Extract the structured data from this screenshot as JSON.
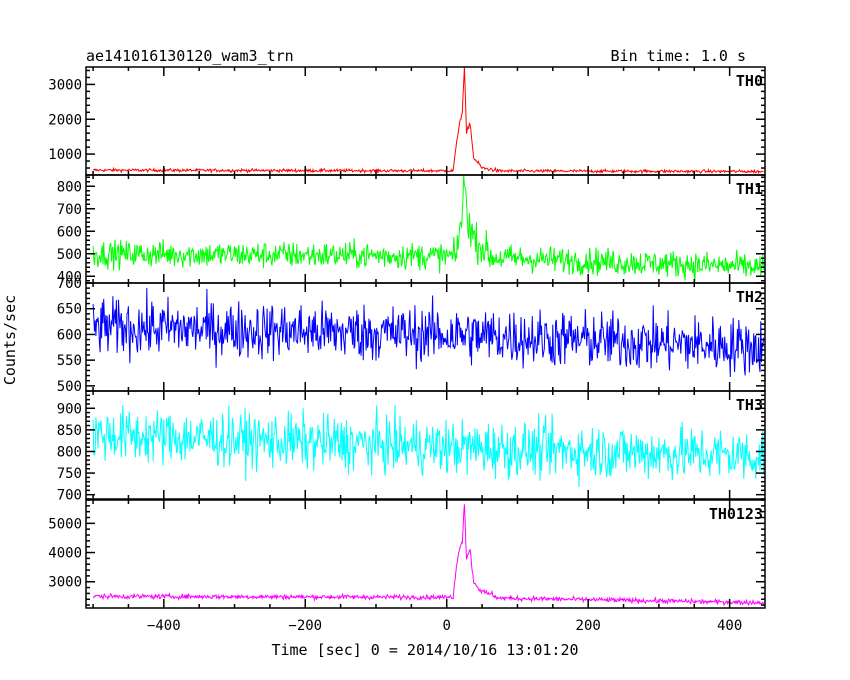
{
  "header": {
    "title": "ae141016130120_wam3_trn",
    "bin_time": "Bin time: 1.0 s"
  },
  "chart_data": {
    "type": "line",
    "title": "ae141016130120_wam3_trn",
    "subtitle": "Bin time: 1.0 s",
    "xlabel": "Time [sec] 0 = 2014/10/16 13:01:20",
    "ylabel": "Counts/sec",
    "xlim": [
      -510,
      450
    ],
    "x_ticks": [
      -400,
      -200,
      0,
      200,
      400
    ],
    "grid": false,
    "legend": "none",
    "panels": [
      {
        "name": "TH0",
        "color": "#ff0000",
        "ylim": [
          400,
          3500
        ],
        "y_ticks": [
          1000,
          2000,
          3000
        ],
        "baseline": [
          [
            -500,
            540
          ],
          [
            0,
            520
          ],
          [
            450,
            500
          ]
        ],
        "noise_sd": 22,
        "burst": [
          [
            10,
            700
          ],
          [
            18,
            1900
          ],
          [
            22,
            2200
          ],
          [
            25,
            3500
          ],
          [
            28,
            1600
          ],
          [
            33,
            1900
          ],
          [
            38,
            900
          ],
          [
            50,
            600
          ],
          [
            70,
            540
          ]
        ]
      },
      {
        "name": "TH1",
        "color": "#00ff00",
        "ylim": [
          370,
          850
        ],
        "y_ticks": [
          400,
          500,
          600,
          700,
          800
        ],
        "baseline": [
          [
            -500,
            500
          ],
          [
            0,
            490
          ],
          [
            450,
            440
          ]
        ],
        "noise_sd": 30,
        "burst": [
          [
            15,
            540
          ],
          [
            22,
            680
          ],
          [
            25,
            830
          ],
          [
            30,
            650
          ],
          [
            40,
            560
          ],
          [
            60,
            500
          ]
        ]
      },
      {
        "name": "TH2",
        "color": "#0000ff",
        "ylim": [
          490,
          700
        ],
        "y_ticks": [
          500,
          550,
          600,
          650,
          700
        ],
        "baseline": [
          [
            -500,
            615
          ],
          [
            0,
            600
          ],
          [
            450,
            575
          ]
        ],
        "noise_sd": 28,
        "burst": []
      },
      {
        "name": "TH3",
        "color": "#00ffff",
        "ylim": [
          690,
          940
        ],
        "y_ticks": [
          700,
          750,
          800,
          850,
          900
        ],
        "baseline": [
          [
            -500,
            840
          ],
          [
            0,
            810
          ],
          [
            450,
            790
          ]
        ],
        "noise_sd": 32,
        "burst": []
      },
      {
        "name": "TH0123",
        "color": "#ff00ff",
        "ylim": [
          2100,
          5800
        ],
        "y_ticks": [
          3000,
          4000,
          5000
        ],
        "baseline": [
          [
            -500,
            2500
          ],
          [
            0,
            2470
          ],
          [
            450,
            2280
          ]
        ],
        "noise_sd": 40,
        "burst": [
          [
            10,
            2800
          ],
          [
            18,
            4200
          ],
          [
            22,
            4400
          ],
          [
            25,
            5700
          ],
          [
            28,
            3800
          ],
          [
            33,
            4100
          ],
          [
            38,
            3000
          ],
          [
            50,
            2650
          ],
          [
            70,
            2520
          ]
        ]
      }
    ]
  }
}
